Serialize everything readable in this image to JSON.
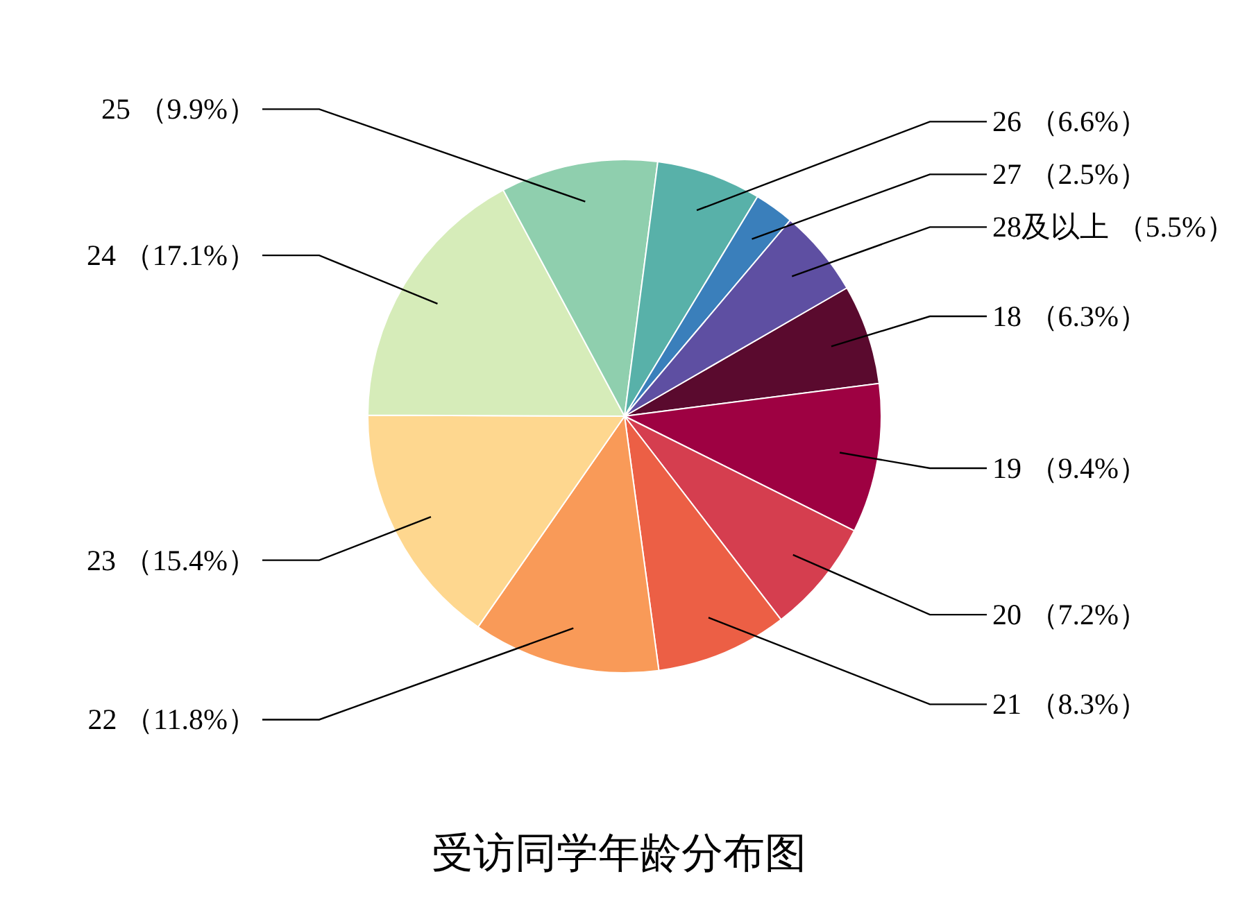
{
  "chart_data": {
    "type": "pie",
    "title": "受访同学年龄分布图",
    "categories": [
      "18",
      "19",
      "20",
      "21",
      "22",
      "23",
      "24",
      "25",
      "26",
      "27",
      "28及以上"
    ],
    "values": [
      6.3,
      9.4,
      7.2,
      8.3,
      11.8,
      15.4,
      17.1,
      9.9,
      6.6,
      2.5,
      5.5
    ],
    "value_labels": [
      "（6.3%）",
      "（9.4%）",
      "（7.2%）",
      "（8.3%）",
      "（11.8%）",
      "（15.4%）",
      "（17.1%）",
      "（9.9%）",
      "（6.6%）",
      "（2.5%）",
      "（5.5%）"
    ],
    "colors": [
      "#5a0a2e",
      "#9e0142",
      "#d53e4f",
      "#ec5f45",
      "#f99a58",
      "#fed78f",
      "#d6ecb9",
      "#8fcfae",
      "#58b1a9",
      "#3a7fbb",
      "#5e4fa2"
    ]
  }
}
